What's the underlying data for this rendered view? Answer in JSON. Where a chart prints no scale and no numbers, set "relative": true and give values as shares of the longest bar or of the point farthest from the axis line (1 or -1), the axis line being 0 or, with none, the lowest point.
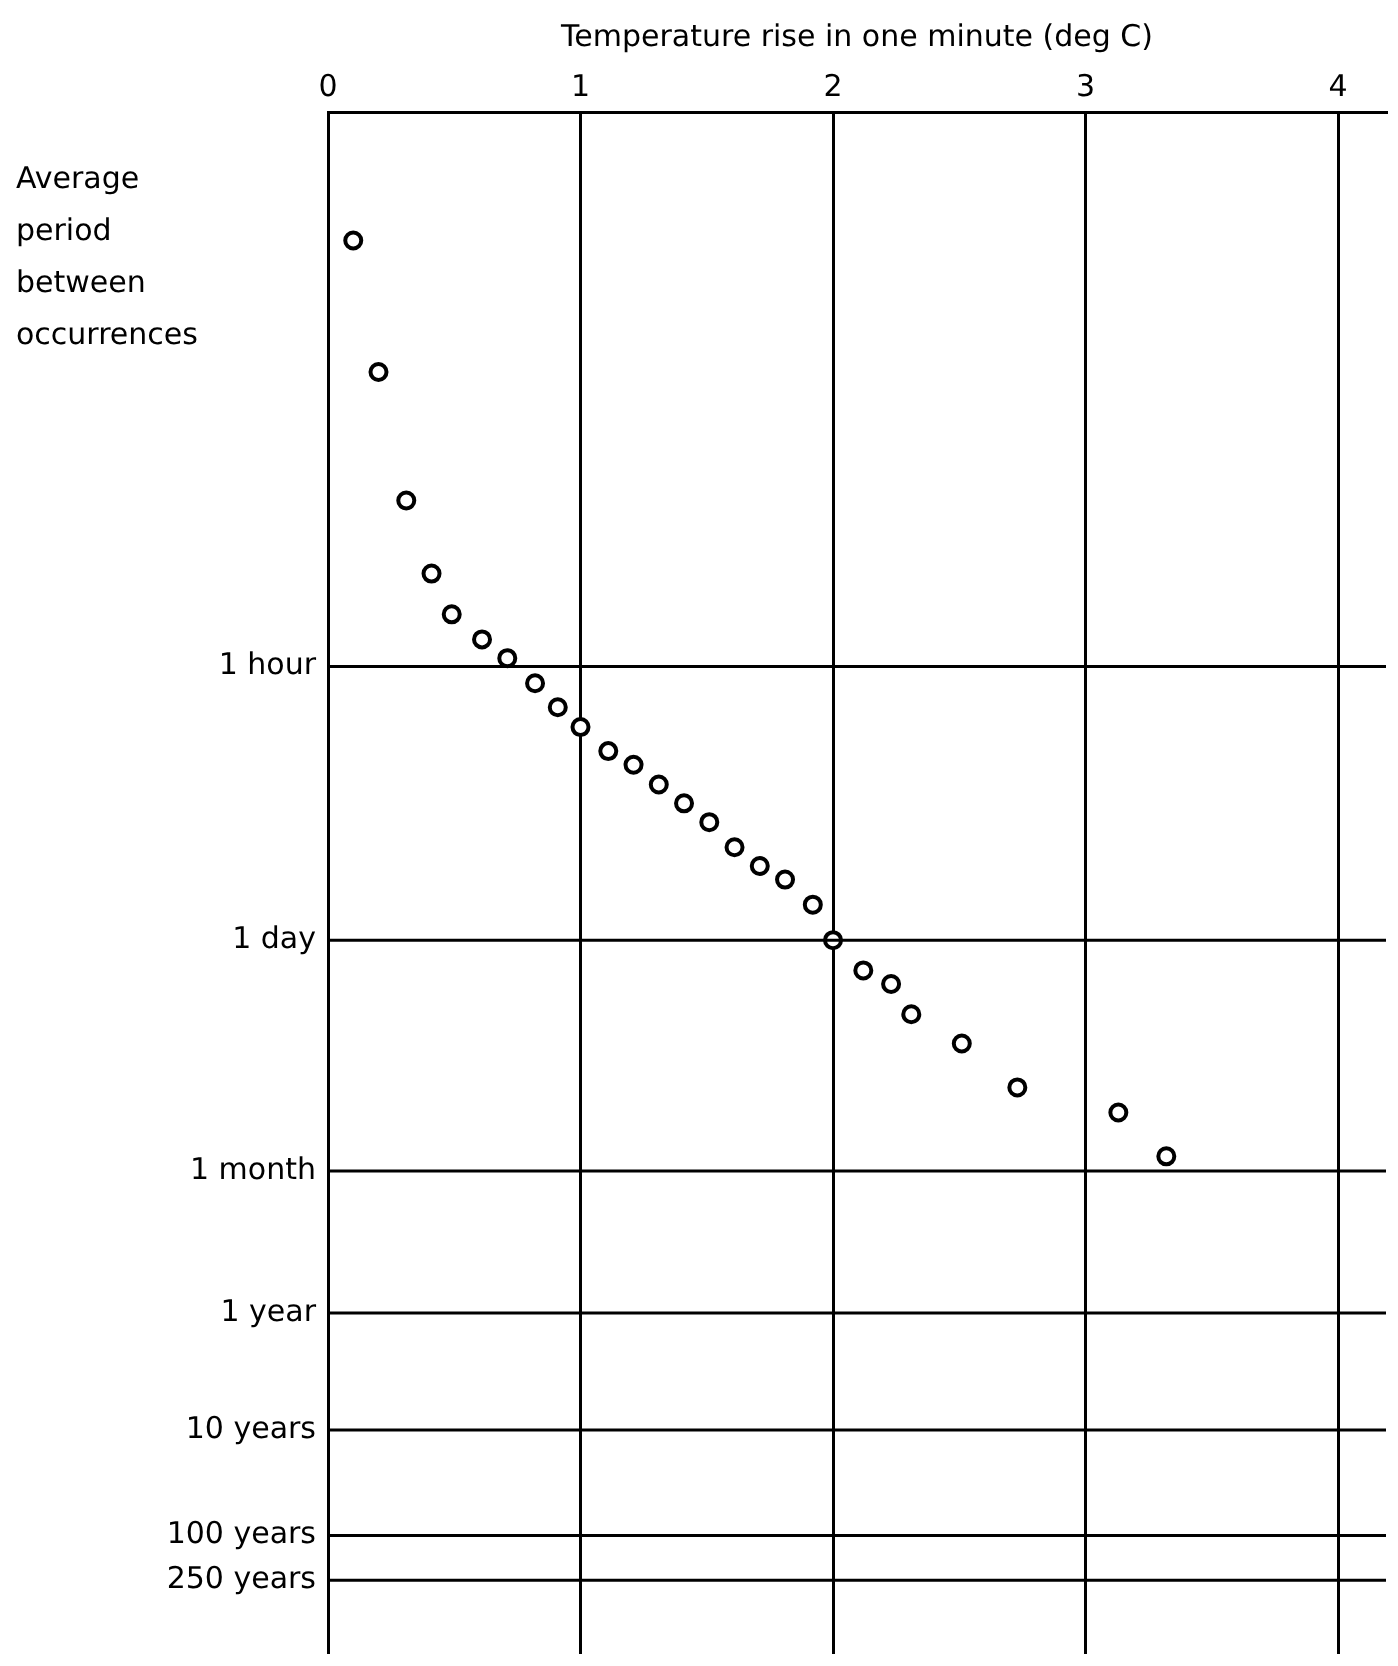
{
  "chart_data": {
    "type": "scatter",
    "xlabel": "Temperature rise in one minute (deg C)",
    "annotations": [
      "Average period between occurrences"
    ],
    "relative": true,
    "x": [
      0.1,
      0.2,
      0.31,
      0.41,
      0.49,
      0.61,
      0.71,
      0.82,
      0.91,
      1.0,
      1.11,
      1.21,
      1.31,
      1.41,
      1.51,
      1.61,
      1.71,
      1.81,
      1.92,
      2.0,
      2.12,
      2.23,
      2.31,
      2.51,
      2.73,
      3.13,
      3.32
    ],
    "series": [
      {
        "color": "#000000",
        "values": [
          -0.123,
          -0.249,
          -0.372,
          -0.442,
          -0.481,
          -0.505,
          -0.523,
          -0.547,
          -0.57,
          -0.589,
          -0.612,
          -0.625,
          -0.644,
          -0.662,
          -0.68,
          -0.704,
          -0.722,
          -0.735,
          -0.759,
          -0.793,
          -0.822,
          -0.835,
          -0.864,
          -0.892,
          -0.934,
          -0.958,
          -1.0
        ]
      }
    ],
    "xlim": [
      0,
      4.19
    ],
    "xticks": [
      0,
      1,
      2,
      3,
      4
    ],
    "ref_lines": [
      {
        "axis": "y",
        "value": -0.531,
        "label": "1 hour"
      },
      {
        "axis": "y",
        "value": -0.793,
        "label": "1 day"
      },
      {
        "axis": "y",
        "value": -1.014,
        "label": "1 month"
      },
      {
        "axis": "y",
        "value": -1.15,
        "label": "1 year"
      },
      {
        "axis": "y",
        "value": -1.262,
        "label": "10 years"
      },
      {
        "axis": "y",
        "value": -1.363,
        "label": "100 years"
      },
      {
        "axis": "y",
        "value": -1.406,
        "label": "250 years"
      }
    ],
    "grid": true,
    "legend": false,
    "marker": "circle"
  }
}
